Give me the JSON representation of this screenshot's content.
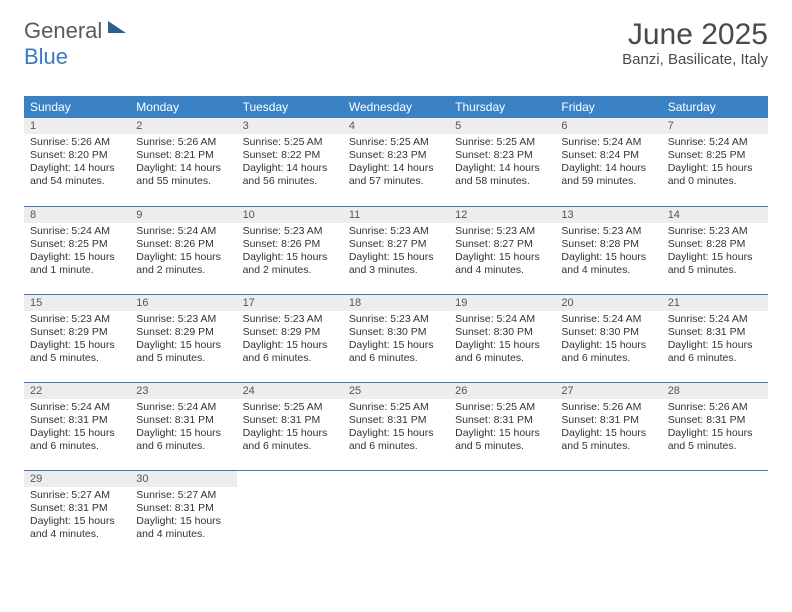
{
  "brand": {
    "text1": "General",
    "text2": "Blue"
  },
  "title": "June 2025",
  "location": "Banzi, Basilicate, Italy",
  "colors": {
    "header_bg": "#3a82c4",
    "header_text": "#ffffff",
    "daynum_bg": "#ededed",
    "rule": "#3a7bbf",
    "logo_dark": "#5a5a5a",
    "logo_blue": "#3a7bbf"
  },
  "weekdays": [
    "Sunday",
    "Monday",
    "Tuesday",
    "Wednesday",
    "Thursday",
    "Friday",
    "Saturday"
  ],
  "layout": {
    "start_weekday_index": 0,
    "days_in_month": 30,
    "rows": 5,
    "cols": 7
  },
  "days": [
    {
      "n": 1,
      "sunrise": "5:26 AM",
      "sunset": "8:20 PM",
      "daylight": "14 hours and 54 minutes."
    },
    {
      "n": 2,
      "sunrise": "5:26 AM",
      "sunset": "8:21 PM",
      "daylight": "14 hours and 55 minutes."
    },
    {
      "n": 3,
      "sunrise": "5:25 AM",
      "sunset": "8:22 PM",
      "daylight": "14 hours and 56 minutes."
    },
    {
      "n": 4,
      "sunrise": "5:25 AM",
      "sunset": "8:23 PM",
      "daylight": "14 hours and 57 minutes."
    },
    {
      "n": 5,
      "sunrise": "5:25 AM",
      "sunset": "8:23 PM",
      "daylight": "14 hours and 58 minutes."
    },
    {
      "n": 6,
      "sunrise": "5:24 AM",
      "sunset": "8:24 PM",
      "daylight": "14 hours and 59 minutes."
    },
    {
      "n": 7,
      "sunrise": "5:24 AM",
      "sunset": "8:25 PM",
      "daylight": "15 hours and 0 minutes."
    },
    {
      "n": 8,
      "sunrise": "5:24 AM",
      "sunset": "8:25 PM",
      "daylight": "15 hours and 1 minute."
    },
    {
      "n": 9,
      "sunrise": "5:24 AM",
      "sunset": "8:26 PM",
      "daylight": "15 hours and 2 minutes."
    },
    {
      "n": 10,
      "sunrise": "5:23 AM",
      "sunset": "8:26 PM",
      "daylight": "15 hours and 2 minutes."
    },
    {
      "n": 11,
      "sunrise": "5:23 AM",
      "sunset": "8:27 PM",
      "daylight": "15 hours and 3 minutes."
    },
    {
      "n": 12,
      "sunrise": "5:23 AM",
      "sunset": "8:27 PM",
      "daylight": "15 hours and 4 minutes."
    },
    {
      "n": 13,
      "sunrise": "5:23 AM",
      "sunset": "8:28 PM",
      "daylight": "15 hours and 4 minutes."
    },
    {
      "n": 14,
      "sunrise": "5:23 AM",
      "sunset": "8:28 PM",
      "daylight": "15 hours and 5 minutes."
    },
    {
      "n": 15,
      "sunrise": "5:23 AM",
      "sunset": "8:29 PM",
      "daylight": "15 hours and 5 minutes."
    },
    {
      "n": 16,
      "sunrise": "5:23 AM",
      "sunset": "8:29 PM",
      "daylight": "15 hours and 5 minutes."
    },
    {
      "n": 17,
      "sunrise": "5:23 AM",
      "sunset": "8:29 PM",
      "daylight": "15 hours and 6 minutes."
    },
    {
      "n": 18,
      "sunrise": "5:23 AM",
      "sunset": "8:30 PM",
      "daylight": "15 hours and 6 minutes."
    },
    {
      "n": 19,
      "sunrise": "5:24 AM",
      "sunset": "8:30 PM",
      "daylight": "15 hours and 6 minutes."
    },
    {
      "n": 20,
      "sunrise": "5:24 AM",
      "sunset": "8:30 PM",
      "daylight": "15 hours and 6 minutes."
    },
    {
      "n": 21,
      "sunrise": "5:24 AM",
      "sunset": "8:31 PM",
      "daylight": "15 hours and 6 minutes."
    },
    {
      "n": 22,
      "sunrise": "5:24 AM",
      "sunset": "8:31 PM",
      "daylight": "15 hours and 6 minutes."
    },
    {
      "n": 23,
      "sunrise": "5:24 AM",
      "sunset": "8:31 PM",
      "daylight": "15 hours and 6 minutes."
    },
    {
      "n": 24,
      "sunrise": "5:25 AM",
      "sunset": "8:31 PM",
      "daylight": "15 hours and 6 minutes."
    },
    {
      "n": 25,
      "sunrise": "5:25 AM",
      "sunset": "8:31 PM",
      "daylight": "15 hours and 6 minutes."
    },
    {
      "n": 26,
      "sunrise": "5:25 AM",
      "sunset": "8:31 PM",
      "daylight": "15 hours and 5 minutes."
    },
    {
      "n": 27,
      "sunrise": "5:26 AM",
      "sunset": "8:31 PM",
      "daylight": "15 hours and 5 minutes."
    },
    {
      "n": 28,
      "sunrise": "5:26 AM",
      "sunset": "8:31 PM",
      "daylight": "15 hours and 5 minutes."
    },
    {
      "n": 29,
      "sunrise": "5:27 AM",
      "sunset": "8:31 PM",
      "daylight": "15 hours and 4 minutes."
    },
    {
      "n": 30,
      "sunrise": "5:27 AM",
      "sunset": "8:31 PM",
      "daylight": "15 hours and 4 minutes."
    }
  ],
  "labels": {
    "sunrise": "Sunrise:",
    "sunset": "Sunset:",
    "daylight": "Daylight:"
  },
  "typography": {
    "title_fontsize": 30,
    "location_fontsize": 15,
    "weekday_fontsize": 12,
    "daynum_fontsize": 11,
    "body_fontsize": 10.5
  }
}
